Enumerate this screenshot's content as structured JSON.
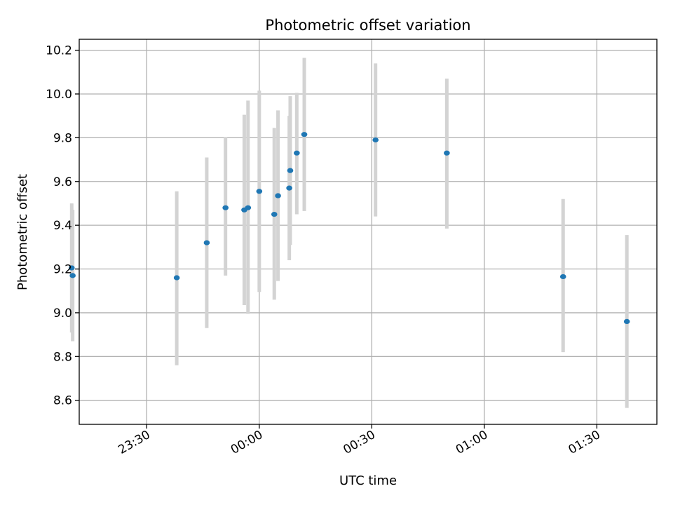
{
  "chart_data": {
    "type": "scatter",
    "title": "Photometric offset variation",
    "xlabel": "UTC time",
    "ylabel": "Photometric offset",
    "x_axis": {
      "unit": "minutes relative to 00:00 UTC",
      "range": [
        -48,
        106
      ],
      "ticks": [
        {
          "value": -30,
          "label": "23:30"
        },
        {
          "value": 0,
          "label": "00:00"
        },
        {
          "value": 30,
          "label": "00:30"
        },
        {
          "value": 60,
          "label": "01:00"
        },
        {
          "value": 90,
          "label": "01:30"
        }
      ]
    },
    "y_axis": {
      "range": [
        8.49,
        10.25
      ],
      "ticks": [
        "8.6",
        "8.8",
        "9.0",
        "9.2",
        "9.4",
        "9.6",
        "9.8",
        "10.0",
        "10.2"
      ]
    },
    "grid": true,
    "legend": "none",
    "colors": {
      "point": "#1f77b4",
      "errorbar": "#d3d3d3",
      "grid": "#b0b0b0"
    },
    "points": [
      {
        "time": "23:10",
        "y": 9.205,
        "ylo": 8.91,
        "yhi": 9.5
      },
      {
        "time": "23:10",
        "y": 9.17,
        "ylo": 8.87,
        "yhi": 9.47
      },
      {
        "time": "23:38",
        "y": 9.16,
        "ylo": 8.76,
        "yhi": 9.555
      },
      {
        "time": "23:46",
        "y": 9.32,
        "ylo": 8.93,
        "yhi": 9.71
      },
      {
        "time": "23:51",
        "y": 9.48,
        "ylo": 9.17,
        "yhi": 9.8
      },
      {
        "time": "23:56",
        "y": 9.47,
        "ylo": 9.035,
        "yhi": 9.905
      },
      {
        "time": "23:57",
        "y": 9.48,
        "ylo": 8.995,
        "yhi": 9.97
      },
      {
        "time": "00:00",
        "y": 9.555,
        "ylo": 9.095,
        "yhi": 10.015
      },
      {
        "time": "00:04",
        "y": 9.45,
        "ylo": 9.06,
        "yhi": 9.845
      },
      {
        "time": "00:05",
        "y": 9.535,
        "ylo": 9.145,
        "yhi": 9.925
      },
      {
        "time": "00:08",
        "y": 9.57,
        "ylo": 9.24,
        "yhi": 9.9
      },
      {
        "time": "00:08",
        "y": 9.65,
        "ylo": 9.31,
        "yhi": 9.99
      },
      {
        "time": "00:10",
        "y": 9.73,
        "ylo": 9.45,
        "yhi": 10.005
      },
      {
        "time": "00:12",
        "y": 9.815,
        "ylo": 9.465,
        "yhi": 10.165
      },
      {
        "time": "00:31",
        "y": 9.79,
        "ylo": 9.44,
        "yhi": 10.14
      },
      {
        "time": "00:50",
        "y": 9.73,
        "ylo": 9.385,
        "yhi": 10.07
      },
      {
        "time": "01:21",
        "y": 9.165,
        "ylo": 8.82,
        "yhi": 9.52
      },
      {
        "time": "01:38",
        "y": 8.96,
        "ylo": 8.565,
        "yhi": 9.355
      }
    ]
  }
}
